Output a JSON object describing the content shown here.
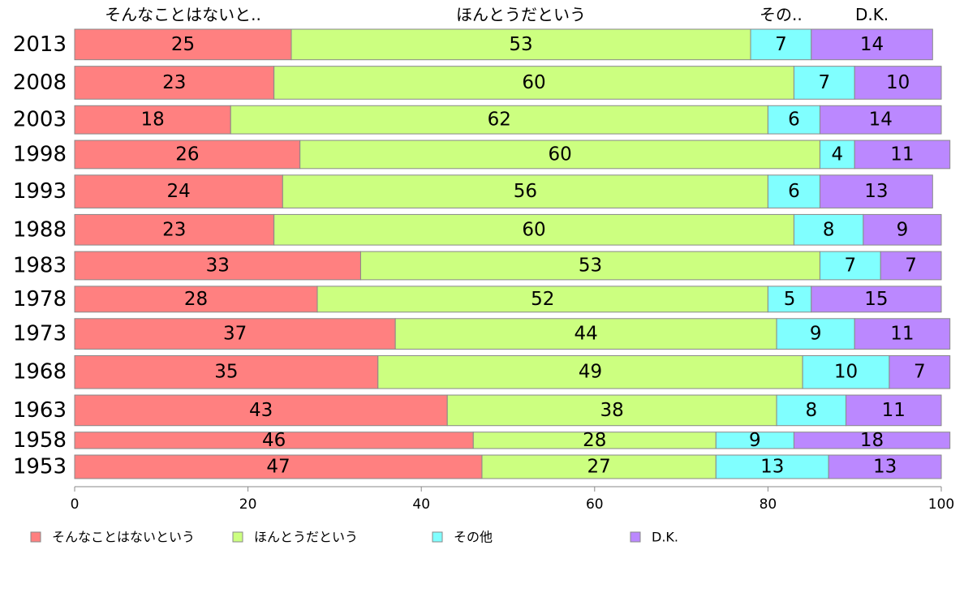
{
  "chart_data": {
    "type": "bar",
    "orientation": "horizontal",
    "stacked": true,
    "categories": [
      "2013",
      "2008",
      "2003",
      "1998",
      "1993",
      "1988",
      "1983",
      "1978",
      "1973",
      "1968",
      "1963",
      "1958",
      "1953"
    ],
    "series": [
      {
        "name": "そんなことはないという",
        "color": "#ff8080",
        "values": [
          25,
          23,
          18,
          26,
          24,
          23,
          33,
          28,
          37,
          35,
          43,
          46,
          47
        ]
      },
      {
        "name": "ほんとうだという",
        "color": "#ccff80",
        "values": [
          53,
          60,
          62,
          60,
          56,
          60,
          53,
          52,
          44,
          49,
          38,
          28,
          27
        ]
      },
      {
        "name": "その他",
        "color": "#80ffff",
        "values": [
          7,
          7,
          6,
          4,
          6,
          8,
          7,
          5,
          9,
          10,
          8,
          9,
          13
        ]
      },
      {
        "name": "D.K.",
        "color": "#bb88ff",
        "values": [
          14,
          10,
          14,
          11,
          13,
          9,
          7,
          15,
          11,
          7,
          11,
          18,
          13
        ]
      }
    ],
    "bar_widths": [
      13,
      14,
      12,
      12,
      14,
      13,
      12,
      11,
      13,
      14,
      13,
      7,
      10
    ],
    "top_labels": [
      "そんなことはないと..",
      "ほんとうだという",
      "その..",
      "D.K."
    ],
    "xlim": [
      0,
      100
    ],
    "xticks": [
      0,
      20,
      40,
      60,
      80,
      100
    ],
    "legend_position": "bottom"
  }
}
